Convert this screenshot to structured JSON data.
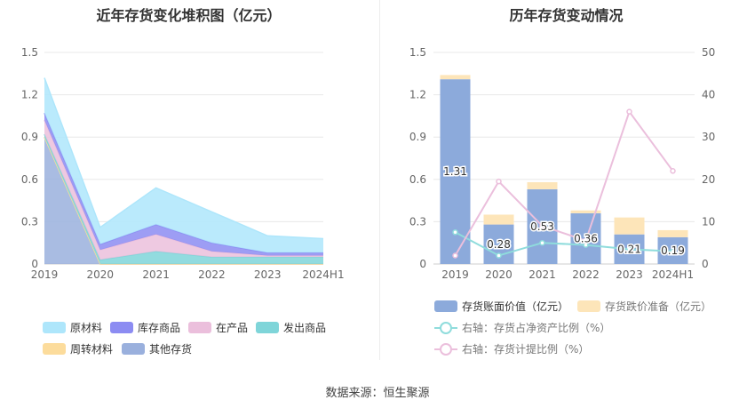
{
  "left": {
    "title": "近年存货变化堆积图（亿元）",
    "legend": [
      {
        "label": "原材料",
        "color": "#aee6fb"
      },
      {
        "label": "库存商品",
        "color": "#8c8cf2"
      },
      {
        "label": "在产品",
        "color": "#ebbfdc"
      },
      {
        "label": "发出商品",
        "color": "#7fd5d9"
      },
      {
        "label": "周转材料",
        "color": "#fcdc9c"
      },
      {
        "label": "其他存货",
        "color": "#9ab0dd"
      }
    ]
  },
  "right": {
    "title": "历年存货变动情况",
    "legend": [
      {
        "label": "存货账面价值（亿元）",
        "color": "#8caadb"
      },
      {
        "label": "存货跌价准备（亿元）",
        "color": "#fde5b9"
      },
      {
        "label": "右轴：存货占净资产比例（%）",
        "color": "#8fdcdc"
      },
      {
        "label": "右轴：存货计提比例（%）",
        "color": "#ebbfdc"
      }
    ]
  },
  "footer": "数据来源：恒生聚源",
  "chart_data": [
    {
      "type": "area",
      "stacked": true,
      "title": "近年存货变化堆积图（亿元）",
      "categories": [
        "2019",
        "2020",
        "2021",
        "2022",
        "2023",
        "2024H1"
      ],
      "ylim": [
        0,
        1.5
      ],
      "yticks": [
        "0",
        "0.3",
        "0.6",
        "0.9",
        "1.2",
        "1.5"
      ],
      "grid": true,
      "legend_position": "bottom",
      "series": [
        {
          "name": "其他存货",
          "color": "#9ab0dd",
          "values": [
            0.9,
            0.0,
            0.0,
            0.0,
            0.0,
            0.0
          ]
        },
        {
          "name": "周转材料",
          "color": "#fcdc9c",
          "values": [
            0.0,
            0.0,
            0.0,
            0.0,
            0.0,
            0.0
          ]
        },
        {
          "name": "发出商品",
          "color": "#7fd5d9",
          "values": [
            0.02,
            0.03,
            0.09,
            0.05,
            0.05,
            0.05
          ]
        },
        {
          "name": "在产品",
          "color": "#ebbfdc",
          "values": [
            0.1,
            0.07,
            0.12,
            0.04,
            0.01,
            0.01
          ]
        },
        {
          "name": "库存商品",
          "color": "#8c8cf2",
          "values": [
            0.05,
            0.04,
            0.07,
            0.06,
            0.02,
            0.02
          ]
        },
        {
          "name": "原材料",
          "color": "#aee6fb",
          "values": [
            0.25,
            0.12,
            0.26,
            0.22,
            0.12,
            0.1
          ]
        }
      ]
    },
    {
      "type": "bar",
      "stacked": true,
      "title": "历年存货变动情况",
      "categories": [
        "2019",
        "2020",
        "2021",
        "2022",
        "2023",
        "2024H1"
      ],
      "ylim": [
        0,
        1.5
      ],
      "yticks": [
        "0",
        "0.3",
        "0.6",
        "0.9",
        "1.2",
        "1.5"
      ],
      "y2lim": [
        0,
        50
      ],
      "y2ticks": [
        "0",
        "10",
        "20",
        "30",
        "40",
        "50"
      ],
      "grid": true,
      "legend_position": "bottom",
      "series": [
        {
          "name": "存货账面价值（亿元）",
          "color": "#8caadb",
          "values": [
            1.31,
            0.28,
            0.53,
            0.36,
            0.21,
            0.19
          ],
          "labels": [
            "1.31",
            "0.28",
            "0.53",
            "0.36",
            "0.21",
            "0.19"
          ]
        },
        {
          "name": "存货跌价准备（亿元）",
          "color": "#fde5b9",
          "values": [
            0.03,
            0.07,
            0.05,
            0.02,
            0.12,
            0.05
          ]
        }
      ],
      "line_series": [
        {
          "name": "右轴：存货占净资产比例（%）",
          "color": "#8fdcdc",
          "axis": "right",
          "values": [
            7.5,
            2.0,
            5.0,
            4.5,
            3.5,
            3.0
          ]
        },
        {
          "name": "右轴：存货计提比例（%）",
          "color": "#ebbfdc",
          "axis": "right",
          "values": [
            2.0,
            19.5,
            9.0,
            5.5,
            36.0,
            22.0
          ]
        }
      ]
    }
  ]
}
